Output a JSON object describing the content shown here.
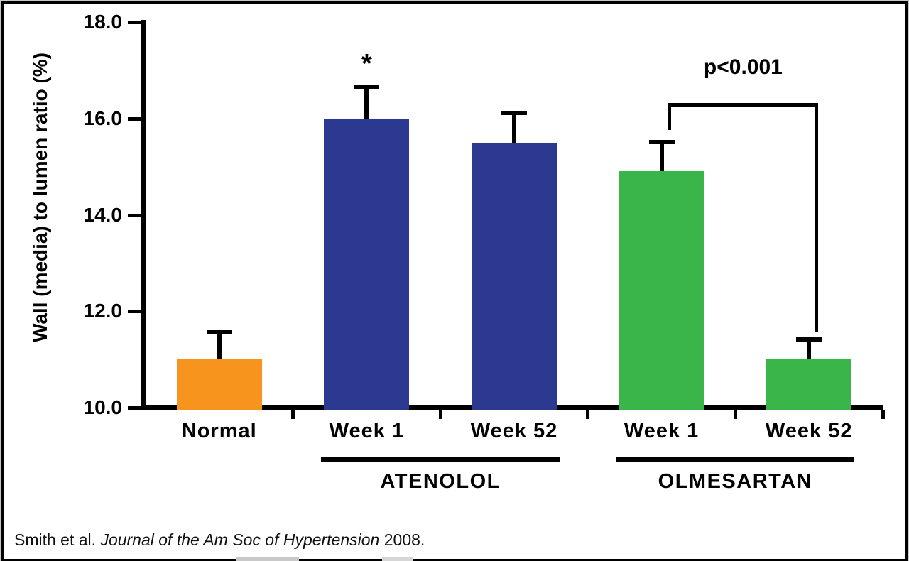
{
  "figure": {
    "background": "#ffffff",
    "border_color": "#000000"
  },
  "chart_data": {
    "type": "bar",
    "title": "",
    "ylabel": "Wall (media) to lumen ratio (%)",
    "xlabel": "",
    "ylim": [
      10.0,
      18.0
    ],
    "yticks": [
      10.0,
      12.0,
      14.0,
      16.0,
      18.0
    ],
    "ytick_labels": [
      "10.0",
      "12.0",
      "14.0",
      "16.0",
      "18.0"
    ],
    "categories": [
      "Normal",
      "Week 1",
      "Week 52",
      "Week 1",
      "Week 52"
    ],
    "values": [
      11.0,
      16.0,
      15.5,
      14.9,
      11.0
    ],
    "errors_plus": [
      0.55,
      0.65,
      0.6,
      0.6,
      0.4
    ],
    "bar_colors": [
      "#F7941E",
      "#2B3990",
      "#2B3990",
      "#39B54A",
      "#39B54A"
    ],
    "groups": [
      {
        "label": "ATENOLOL",
        "bar_indices": [
          1,
          2
        ]
      },
      {
        "label": "OLMESARTAN",
        "bar_indices": [
          3,
          4
        ]
      }
    ],
    "annotations": {
      "asterisk": {
        "text": "*",
        "bar_index": 1
      },
      "significance_bracket": {
        "text": "p<0.001",
        "from_bar_index": 3,
        "to_bar_index": 4
      }
    },
    "grid": false,
    "legend": false,
    "axis_color": "#000000"
  },
  "citation": {
    "prefix": "Smith et al. ",
    "journal_italic": "Journal of the Am Soc of Hypertension",
    "suffix": " 2008."
  }
}
